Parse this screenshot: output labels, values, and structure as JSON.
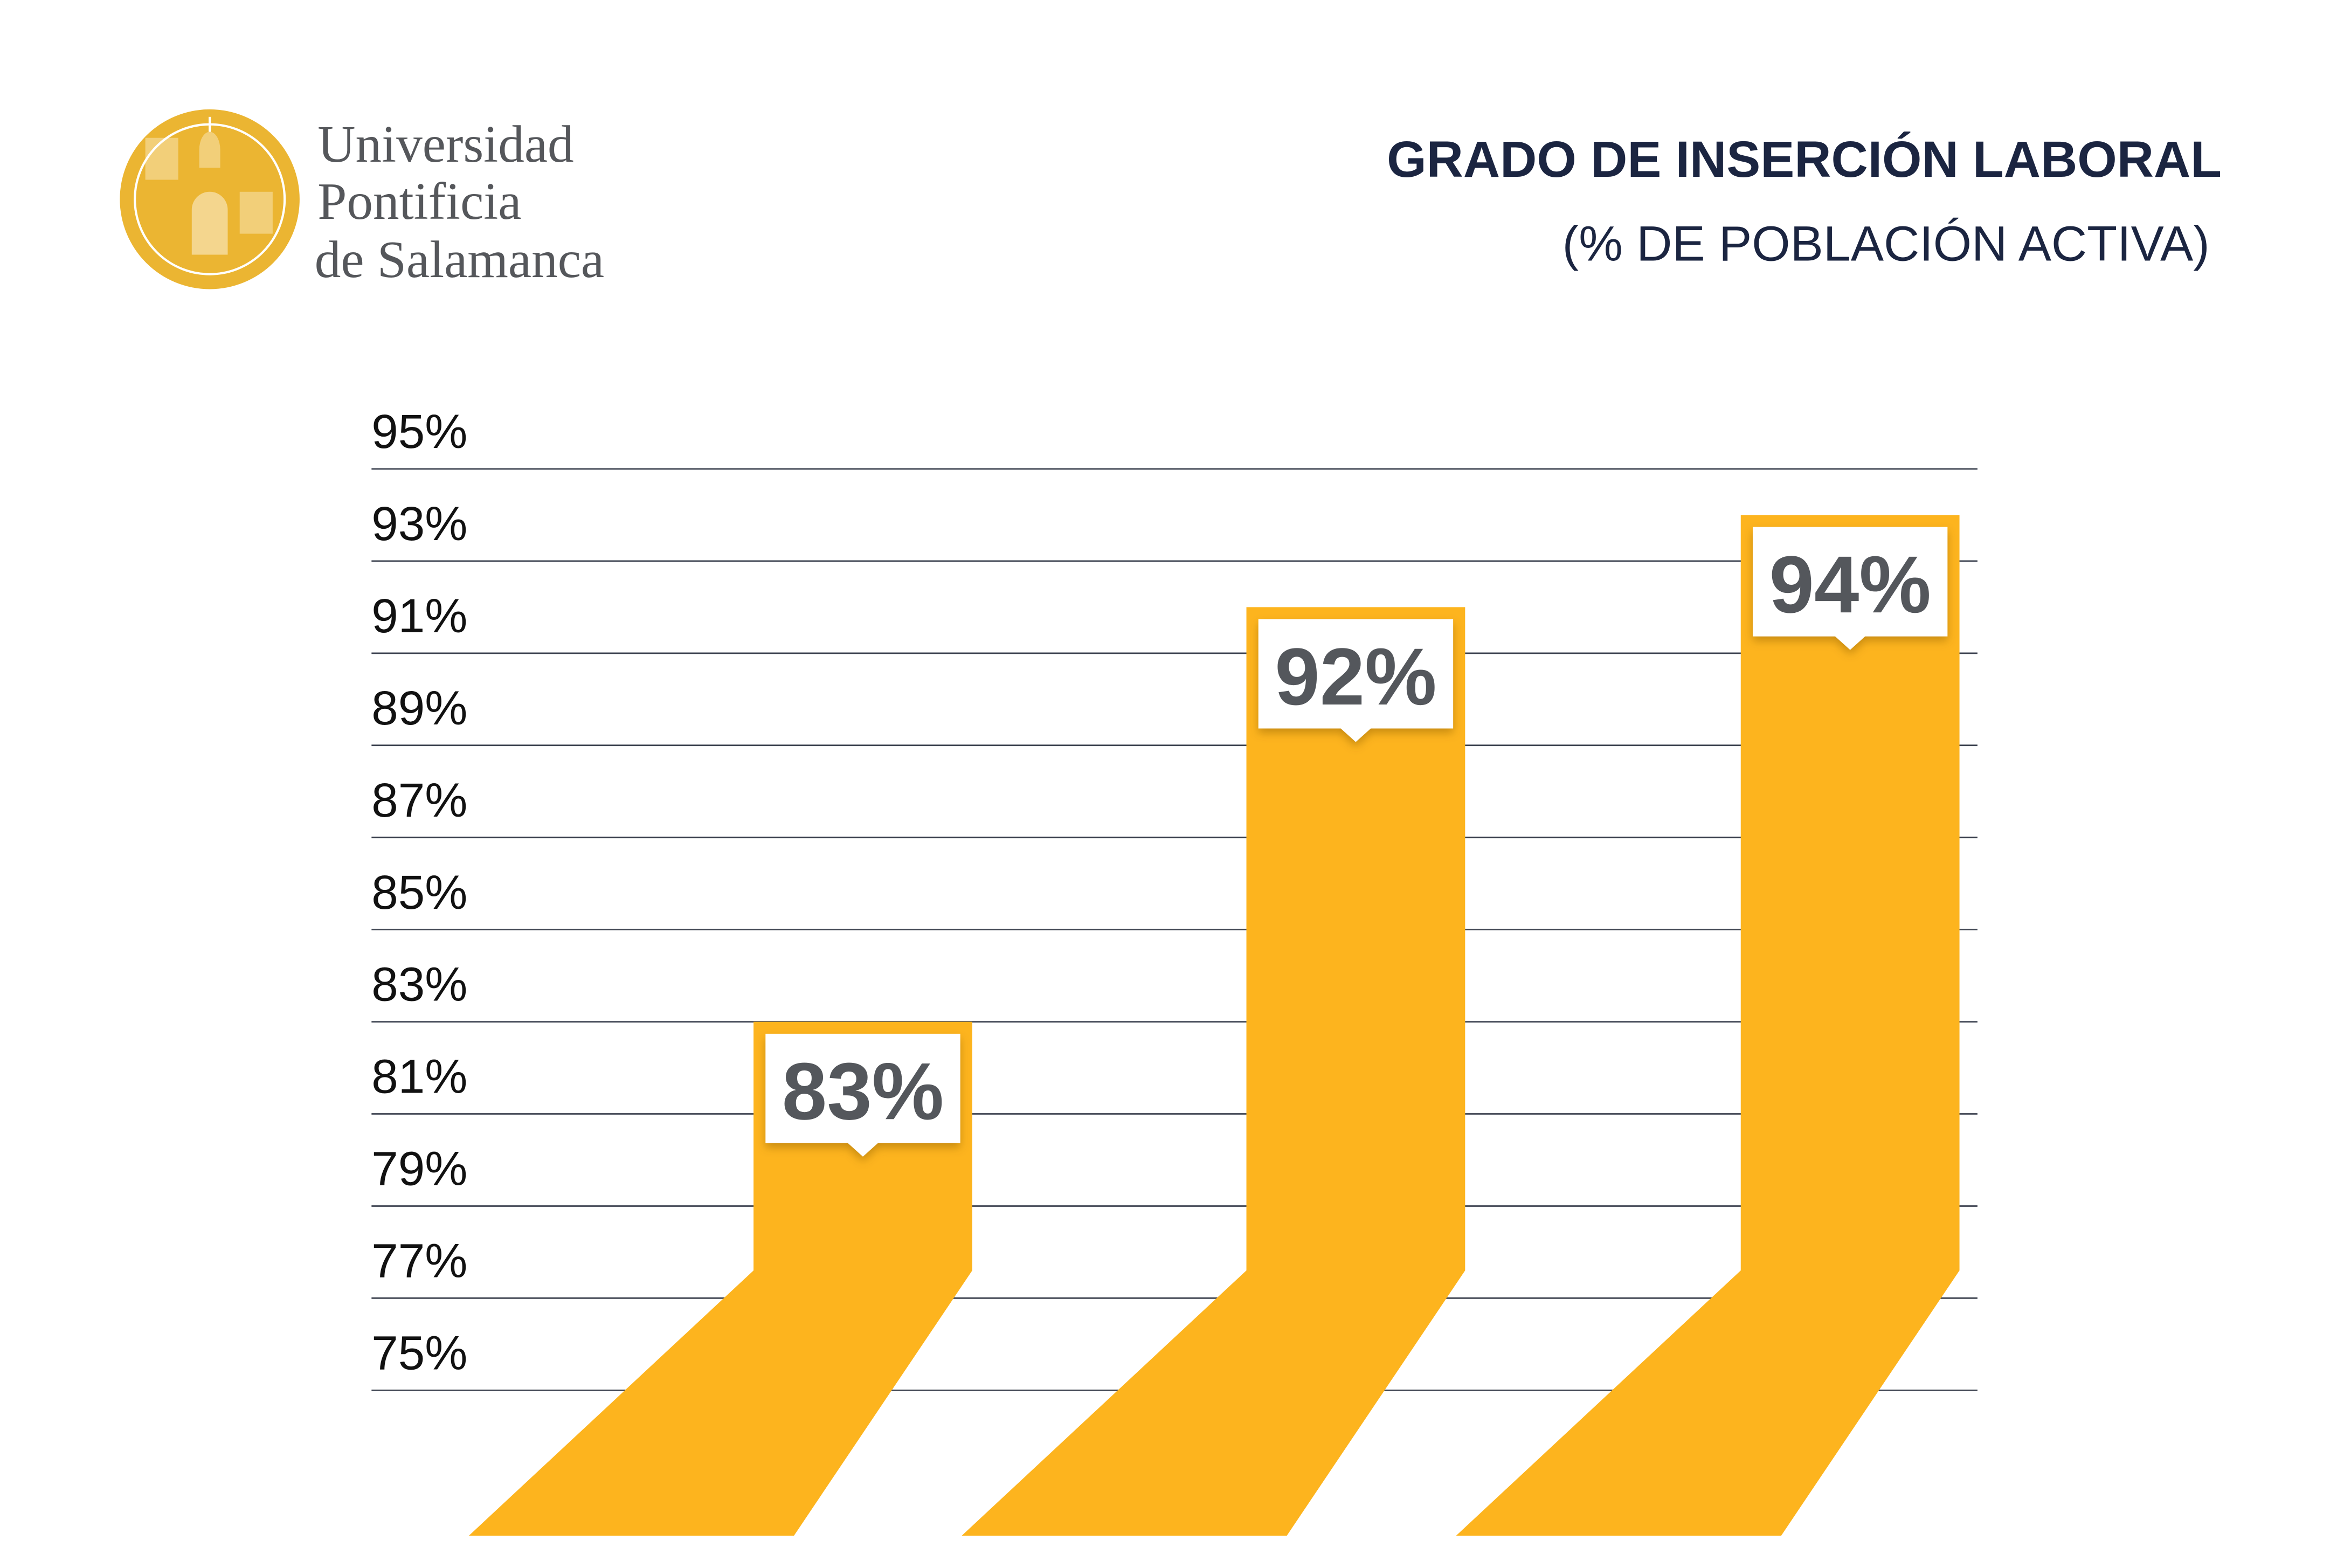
{
  "logo": {
    "lines": [
      "Universidad",
      "Pontificia",
      "de Salamanca"
    ],
    "emblem": "university-seal",
    "emblem_color": "#EBB532",
    "text_color": "#55575B"
  },
  "chart_data": {
    "type": "bar",
    "title": "GRADO DE INSERCIÓN LABORAL",
    "subtitle": "(% DE POBLACIÓN ACTIVA)",
    "xlabel": "",
    "ylabel": "",
    "categories": [
      "",
      "",
      ""
    ],
    "values": [
      83,
      92,
      94
    ],
    "data_labels": [
      "83%",
      "92%",
      "94%"
    ],
    "yticks": [
      "95%",
      "93%",
      "91%",
      "89%",
      "87%",
      "85%",
      "83%",
      "81%",
      "79%",
      "77%",
      "75%"
    ],
    "ylim": [
      75,
      95
    ],
    "grid": true,
    "bar_color": "#FDB41E",
    "label_text_color": "#54575C",
    "title_color": "#1B2541"
  }
}
